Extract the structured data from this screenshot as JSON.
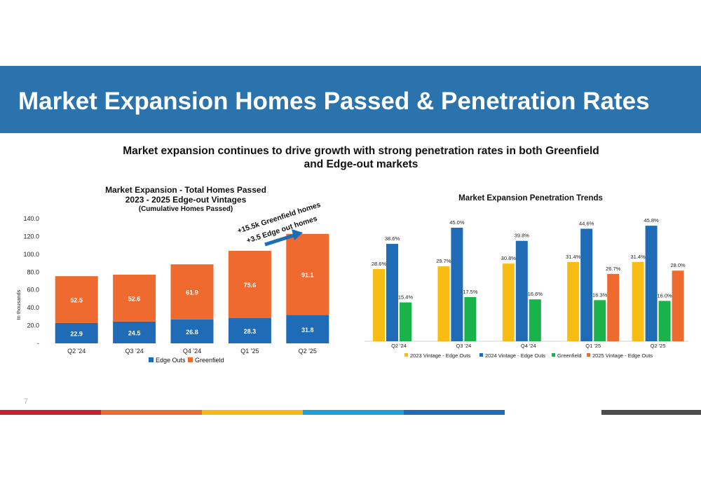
{
  "header": {
    "title": "Market Expansion Homes Passed & Penetration Rates",
    "subtitle_line1": "Market expansion continues to drive growth with strong penetration rates in both Greenfield",
    "subtitle_line2": "and Edge-out markets"
  },
  "footer": {
    "page_number": "7",
    "stripe_colors": [
      "#c8202f",
      "#ee6a2e",
      "#f3b81b",
      "#1aa1d8",
      "#1f6bb5",
      "#4d4d4d"
    ]
  },
  "chart_data": [
    {
      "type": "bar",
      "stacked": true,
      "title": "Market Expansion - Total Homes Passed",
      "title_line2": "2023 - 2025 Edge-out Vintages",
      "subtitle": "(Cumulative Homes Passed)",
      "xlabel": "",
      "ylabel": "In thousands",
      "ylim": [
        0,
        140
      ],
      "ytick_labels": [
        "-",
        "20.0",
        "40.0",
        "60.0",
        "80.0",
        "100.0",
        "120.0",
        "140.0"
      ],
      "categories": [
        "Q2 '24",
        "Q3 '24",
        "Q4 '24",
        "Q1 '25",
        "Q2 '25"
      ],
      "series": [
        {
          "name": "Edge Outs",
          "color": "#1f6bb5",
          "values": [
            22.9,
            24.5,
            26.8,
            28.3,
            31.8
          ],
          "labels": [
            "22.9",
            "24.5",
            "26.8",
            "28.3",
            "31.8"
          ]
        },
        {
          "name": "Greenfield",
          "color": "#ee6a2e",
          "values": [
            52.5,
            52.6,
            61.9,
            75.6,
            91.1
          ],
          "labels": [
            "52.5",
            "52.6",
            "61.9",
            "75.6",
            "91.1"
          ]
        }
      ],
      "annotation": {
        "line1": "+15.5k Greenfield homes",
        "line2": "+3.5 Edge out homes",
        "arrow_color": "#1f6bb5"
      },
      "legend_position": "bottom"
    },
    {
      "type": "bar",
      "title": "Market Expansion Penetration Trends",
      "xlabel": "",
      "ylabel": "",
      "ylim": [
        0,
        50
      ],
      "categories": [
        "Q2 '24",
        "Q3 '24",
        "Q4 '24",
        "Q1 '25",
        "Q2 '25"
      ],
      "series": [
        {
          "name": "2023 Vintage - Edge Outs",
          "color": "#f7bd14",
          "values": [
            28.6,
            29.7,
            30.8,
            31.4,
            31.4
          ],
          "labels": [
            "28.6%",
            "29.7%",
            "30.8%",
            "31.4%",
            "31.4%"
          ]
        },
        {
          "name": "2024 Vintage - Edge Outs",
          "color": "#1f6bb5",
          "values": [
            38.6,
            45.0,
            39.8,
            44.6,
            45.8
          ],
          "labels": [
            "38.6%",
            "45.0%",
            "39.8%",
            "44.6%",
            "45.8%"
          ]
        },
        {
          "name": "Greenfield",
          "color": "#19b24b",
          "values": [
            15.4,
            17.5,
            16.6,
            16.3,
            16.0
          ],
          "labels": [
            "15.4%",
            "17.5%",
            "16.6%",
            "16.3%",
            "16.0%"
          ]
        },
        {
          "name": "2025 Vintage - Edge Outs",
          "color": "#ee6a2e",
          "values": [
            null,
            null,
            null,
            26.7,
            28.0
          ],
          "labels": [
            null,
            null,
            null,
            "26.7%",
            "28.0%"
          ]
        }
      ],
      "legend_position": "bottom"
    }
  ]
}
